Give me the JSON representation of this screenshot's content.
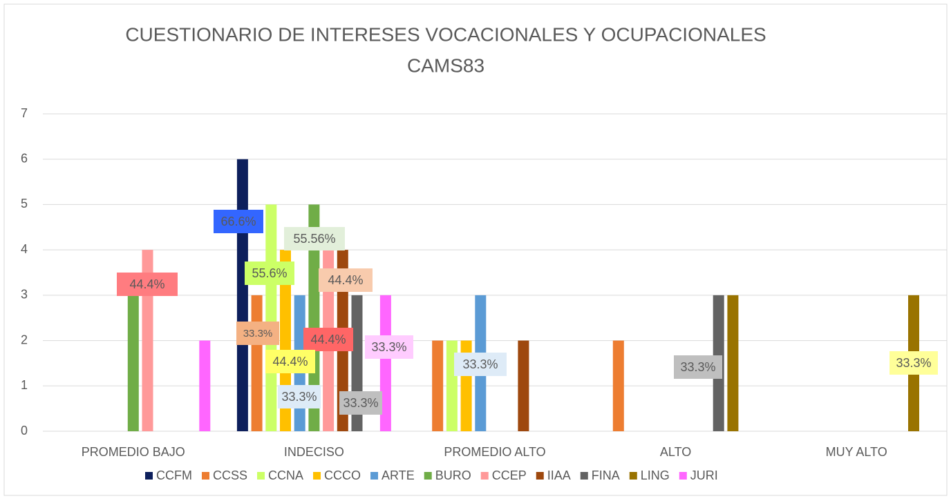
{
  "chart_data": {
    "type": "bar",
    "title": [
      "CUESTIONARIO DE INTERESES VOCACIONALES Y OCUPACIONALES",
      "CAMS83"
    ],
    "categories": [
      "PROMEDIO BAJO",
      "INDECISO",
      "PROMEDIO ALTO",
      "ALTO",
      "MUY ALTO"
    ],
    "series": [
      {
        "name": "CCFM",
        "color": "#0d1f5c",
        "values": [
          0,
          6,
          0,
          0,
          0
        ]
      },
      {
        "name": "CCSS",
        "color": "#ed7d31",
        "values": [
          0,
          3,
          2,
          2,
          0
        ]
      },
      {
        "name": "CCNA",
        "color": "#ccff66",
        "values": [
          0,
          5,
          2,
          0,
          0
        ]
      },
      {
        "name": "CCCO",
        "color": "#ffc000",
        "values": [
          0,
          4,
          2,
          0,
          0
        ]
      },
      {
        "name": "ARTE",
        "color": "#5b9bd5",
        "values": [
          0,
          3,
          3,
          0,
          0
        ]
      },
      {
        "name": "BURO",
        "color": "#70ad47",
        "values": [
          3,
          5,
          0,
          0,
          0
        ]
      },
      {
        "name": "CCEP",
        "color": "#ff9999",
        "values": [
          4,
          4,
          0,
          0,
          0
        ]
      },
      {
        "name": "IIAA",
        "color": "#9e480e",
        "values": [
          0,
          4,
          2,
          0,
          0
        ]
      },
      {
        "name": "FINA",
        "color": "#636363",
        "values": [
          0,
          3,
          0,
          3,
          0
        ]
      },
      {
        "name": "LING",
        "color": "#997300",
        "values": [
          0,
          0,
          0,
          3,
          3
        ]
      },
      {
        "name": "JURI",
        "color": "#ff66ff",
        "values": [
          2,
          3,
          0,
          0,
          0
        ]
      }
    ],
    "annotations": [
      {
        "text": "44.4%",
        "color": "#ff7c80"
      },
      {
        "text": "66.6%",
        "color": "#3366ff"
      },
      {
        "text": "55.6%",
        "color": "#ccff66"
      },
      {
        "text": "55.56%",
        "color": "#e2efda"
      },
      {
        "text": "44.4%",
        "color": "#f8cbad"
      },
      {
        "text": "33.3%",
        "color": "#f4b183"
      },
      {
        "text": "44.4%",
        "color": "#ff6666"
      },
      {
        "text": "44.4%",
        "color": "#ffff66"
      },
      {
        "text": "33.3%",
        "color": "#ddebf7"
      },
      {
        "text": "33.3%",
        "color": "#bfbfbf"
      },
      {
        "text": "33.3%",
        "color": "#ffccff"
      },
      {
        "text": "33.3%",
        "color": "#deebf7"
      },
      {
        "text": "33.3%",
        "color": "#bfbfbf"
      },
      {
        "text": "33.3%",
        "color": "#ffff99"
      }
    ],
    "ylim": [
      0,
      7
    ],
    "yticks": [
      0,
      1,
      2,
      3,
      4,
      5,
      6,
      7
    ],
    "grid": true,
    "legend": "bottom"
  }
}
